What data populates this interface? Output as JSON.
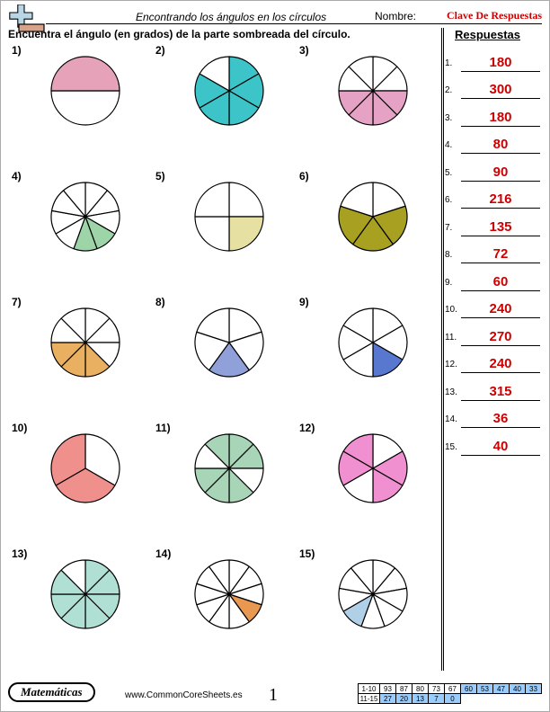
{
  "header": {
    "title": "Encontrando los ángulos en los círculos",
    "name_label": "Nombre:",
    "answer_key": "Clave De Respuestas"
  },
  "instruction": "Encuentra el ángulo (en grados) de la parte sombreada del círculo.",
  "answers_header": "Respuestas",
  "answers": [
    "180",
    "300",
    "180",
    "80",
    "90",
    "216",
    "135",
    "72",
    "60",
    "240",
    "270",
    "240",
    "315",
    "36",
    "40"
  ],
  "logo": {
    "plus_fill": "#b8d6e6",
    "minus_fill": "#d9a38a",
    "stroke": "#000"
  },
  "circle_style": {
    "radius": 38,
    "stroke": "#000",
    "stroke_width": 1.2,
    "unshaded_fill": "#ffffff"
  },
  "problems": [
    {
      "num": "1)",
      "slices": 2,
      "shaded": [
        1
      ],
      "color": "#e6a2b8",
      "start_angle": 0
    },
    {
      "num": "2)",
      "slices": 6,
      "shaded": [
        0,
        1,
        2,
        3,
        4
      ],
      "color": "#3cc4c8",
      "start_angle": -90
    },
    {
      "num": "3)",
      "slices": 8,
      "shaded": [
        2,
        3,
        4,
        5
      ],
      "color": "#e6a2c4",
      "start_angle": -90
    },
    {
      "num": "4)",
      "slices": 9,
      "shaded": [
        3,
        4
      ],
      "color": "#9dd4a8",
      "start_angle": -90
    },
    {
      "num": "5)",
      "slices": 4,
      "shaded": [
        1
      ],
      "color": "#e6e0a2",
      "start_angle": -90
    },
    {
      "num": "6)",
      "slices": 5,
      "shaded": [
        1,
        2,
        3
      ],
      "color": "#a8a020",
      "start_angle": -90
    },
    {
      "num": "7)",
      "slices": 8,
      "shaded": [
        3,
        4,
        5
      ],
      "color": "#e8b060",
      "start_angle": -90
    },
    {
      "num": "8)",
      "slices": 5,
      "shaded": [
        2
      ],
      "color": "#90a0d8",
      "start_angle": -90
    },
    {
      "num": "9)",
      "slices": 6,
      "shaded": [
        2
      ],
      "color": "#5878d0",
      "start_angle": -90
    },
    {
      "num": "10)",
      "slices": 3,
      "shaded": [
        1,
        2
      ],
      "color": "#f0908c",
      "start_angle": -90
    },
    {
      "num": "11)",
      "slices": 8,
      "shaded": [
        0,
        1,
        3,
        4,
        5,
        7
      ],
      "color": "#a8d4b8",
      "start_angle": -90
    },
    {
      "num": "12)",
      "slices": 6,
      "shaded": [
        1,
        2,
        4,
        5
      ],
      "color": "#f090d0",
      "start_angle": -90
    },
    {
      "num": "13)",
      "slices": 8,
      "shaded": [
        0,
        1,
        2,
        3,
        4,
        5,
        6
      ],
      "color": "#b0e0d4",
      "start_angle": -90
    },
    {
      "num": "14)",
      "slices": 10,
      "shaded": [
        3
      ],
      "color": "#e89850",
      "start_angle": -90
    },
    {
      "num": "15)",
      "slices": 9,
      "shaded": [
        5
      ],
      "color": "#b0d0e8",
      "start_angle": -90
    }
  ],
  "footer": {
    "subject": "Matemáticas",
    "site": "www.CommonCoreSheets.es",
    "page": "1",
    "score_rows": [
      {
        "label": "1-10",
        "cells": [
          "93",
          "87",
          "80",
          "73",
          "67",
          "60",
          "53",
          "47",
          "40",
          "33"
        ],
        "hl_from": 5
      },
      {
        "label": "11-15",
        "cells": [
          "27",
          "20",
          "13",
          "7",
          "0"
        ],
        "hl_from": 0
      }
    ]
  }
}
